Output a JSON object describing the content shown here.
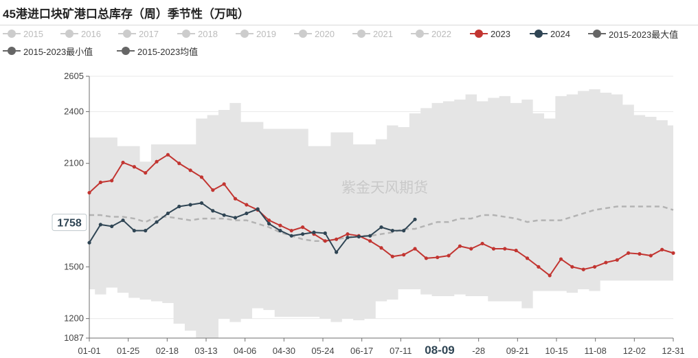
{
  "title": "45港进口块矿港口总库存（周）季节性（万吨）",
  "watermark": "紫金天风期货",
  "colors": {
    "inactive": "#cccccc",
    "inactive_text": "#bbbbbb",
    "y2023": "#c23531",
    "y2024": "#2f4554",
    "band": "#e5e5e5",
    "mean_line": "#b3b3b3",
    "gray_marker": "#666666"
  },
  "legend": [
    {
      "label": "2015",
      "color": "#cccccc",
      "active": false
    },
    {
      "label": "2016",
      "color": "#cccccc",
      "active": false
    },
    {
      "label": "2017",
      "color": "#cccccc",
      "active": false
    },
    {
      "label": "2018",
      "color": "#cccccc",
      "active": false
    },
    {
      "label": "2019",
      "color": "#cccccc",
      "active": false
    },
    {
      "label": "2020",
      "color": "#cccccc",
      "active": false
    },
    {
      "label": "2021",
      "color": "#cccccc",
      "active": false
    },
    {
      "label": "2022",
      "color": "#cccccc",
      "active": false
    },
    {
      "label": "2023",
      "color": "#c23531",
      "active": true
    },
    {
      "label": "2024",
      "color": "#2f4554",
      "active": true
    },
    {
      "label": "2015-2023最大值",
      "color": "#666666",
      "active": true
    },
    {
      "label": "2015-2023最小值",
      "color": "#666666",
      "active": true
    },
    {
      "label": "2015-2023均值",
      "color": "#666666",
      "active": true
    }
  ],
  "chart_data": {
    "type": "line",
    "title": "45港进口块矿港口总库存（周）季节性（万吨）",
    "ylim": [
      1087,
      2605
    ],
    "y_ticks": [
      1087,
      1200,
      1500,
      2100,
      2400,
      2605
    ],
    "x_ticks": [
      "01-01",
      "01-25",
      "02-18",
      "03-13",
      "04-06",
      "04-30",
      "05-24",
      "06-17",
      "07-11",
      "08-09",
      "-28",
      "09-21",
      "10-15",
      "11-08",
      "12-02",
      "12-31"
    ],
    "hover_x": "08-09",
    "hover_y": "1758",
    "weeks": 53,
    "series": [
      {
        "name": "2023",
        "values": [
          1930,
          1990,
          2000,
          2105,
          2080,
          2045,
          2110,
          2150,
          2100,
          2060,
          2020,
          1945,
          1980,
          1895,
          1860,
          1830,
          1770,
          1740,
          1710,
          1730,
          1690,
          1650,
          1660,
          1690,
          1680,
          1650,
          1610,
          1560,
          1570,
          1605,
          1550,
          1555,
          1565,
          1620,
          1605,
          1635,
          1605,
          1605,
          1595,
          1550,
          1500,
          1450,
          1545,
          1500,
          1485,
          1500,
          1525,
          1540,
          1580,
          1575,
          1565,
          1600,
          1580
        ]
      },
      {
        "name": "2024",
        "values": [
          1640,
          1745,
          1735,
          1770,
          1710,
          1710,
          1760,
          1810,
          1850,
          1860,
          1870,
          1825,
          1800,
          1785,
          1810,
          1835,
          1750,
          1710,
          1680,
          1690,
          1700,
          1695,
          1585,
          1670,
          1675,
          1680,
          1730,
          1710,
          1710,
          1775
        ]
      },
      {
        "name": "2015-2023最大值",
        "values": [
          2250,
          2250,
          2250,
          2200,
          2200,
          2110,
          2210,
          2210,
          2210,
          2210,
          2360,
          2380,
          2410,
          2450,
          2340,
          2340,
          2300,
          2300,
          2300,
          2300,
          2200,
          2200,
          2280,
          2280,
          2210,
          2210,
          2240,
          2320,
          2310,
          2390,
          2420,
          2450,
          2460,
          2470,
          2500,
          2460,
          2480,
          2490,
          2450,
          2470,
          2390,
          2360,
          2490,
          2500,
          2520,
          2530,
          2510,
          2500,
          2440,
          2380,
          2370,
          2350,
          2320
        ]
      },
      {
        "name": "2015-2023最小值",
        "values": [
          1370,
          1340,
          1380,
          1350,
          1320,
          1310,
          1300,
          1290,
          1170,
          1130,
          1090,
          1090,
          1200,
          1180,
          1200,
          1260,
          1250,
          1210,
          1210,
          1210,
          1210,
          1200,
          1180,
          1200,
          1190,
          1200,
          1300,
          1310,
          1370,
          1370,
          1340,
          1330,
          1330,
          1340,
          1330,
          1330,
          1300,
          1300,
          1300,
          1260,
          1360,
          1360,
          1360,
          1350,
          1370,
          1360,
          1420,
          1420,
          1420,
          1420,
          1420,
          1420,
          1420
        ]
      },
      {
        "name": "2015-2023均值",
        "values": [
          1800,
          1800,
          1790,
          1790,
          1780,
          1760,
          1790,
          1790,
          1780,
          1770,
          1780,
          1780,
          1780,
          1770,
          1770,
          1750,
          1730,
          1700,
          1680,
          1660,
          1650,
          1650,
          1660,
          1670,
          1680,
          1680,
          1690,
          1700,
          1720,
          1720,
          1740,
          1760,
          1760,
          1780,
          1780,
          1800,
          1800,
          1790,
          1780,
          1760,
          1770,
          1770,
          1770,
          1790,
          1810,
          1830,
          1840,
          1850,
          1850,
          1850,
          1850,
          1850,
          1830
        ]
      }
    ]
  }
}
